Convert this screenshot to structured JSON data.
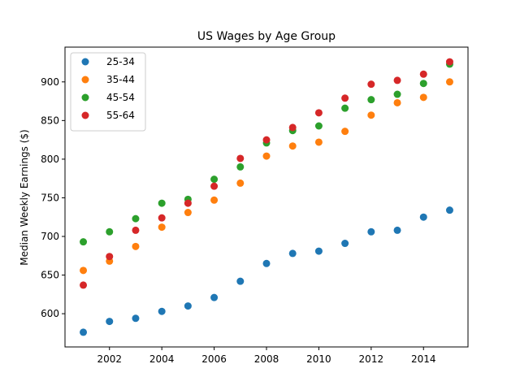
{
  "chart_data": {
    "type": "scatter",
    "title": "US Wages by Age Group",
    "xlabel": "",
    "ylabel": "Median Weekly Earnings ($)",
    "xlim": [
      2000.3,
      2015.7
    ],
    "ylim": [
      557,
      945
    ],
    "xticks": [
      2002,
      2004,
      2006,
      2008,
      2010,
      2012,
      2014
    ],
    "yticks": [
      600,
      650,
      700,
      750,
      800,
      850,
      900
    ],
    "grid": false,
    "legend_position": "top-left",
    "x": [
      2001,
      2002,
      2003,
      2004,
      2005,
      2006,
      2007,
      2008,
      2009,
      2010,
      2011,
      2012,
      2013,
      2014,
      2015
    ],
    "series": [
      {
        "name": "25-34",
        "color": "#1f77b4",
        "values": [
          576,
          590,
          594,
          603,
          610,
          621,
          642,
          665,
          678,
          681,
          691,
          706,
          708,
          725,
          734
        ]
      },
      {
        "name": "35-44",
        "color": "#ff7f0e",
        "values": [
          656,
          668,
          687,
          712,
          731,
          747,
          769,
          804,
          817,
          822,
          836,
          857,
          873,
          880,
          900
        ]
      },
      {
        "name": "45-54",
        "color": "#2ca02c",
        "values": [
          693,
          706,
          723,
          743,
          748,
          774,
          790,
          821,
          837,
          843,
          866,
          877,
          884,
          898,
          923
        ]
      },
      {
        "name": "55-64",
        "color": "#d62728",
        "values": [
          637,
          674,
          708,
          724,
          743,
          765,
          801,
          825,
          841,
          860,
          879,
          897,
          902,
          910,
          926
        ]
      }
    ]
  }
}
